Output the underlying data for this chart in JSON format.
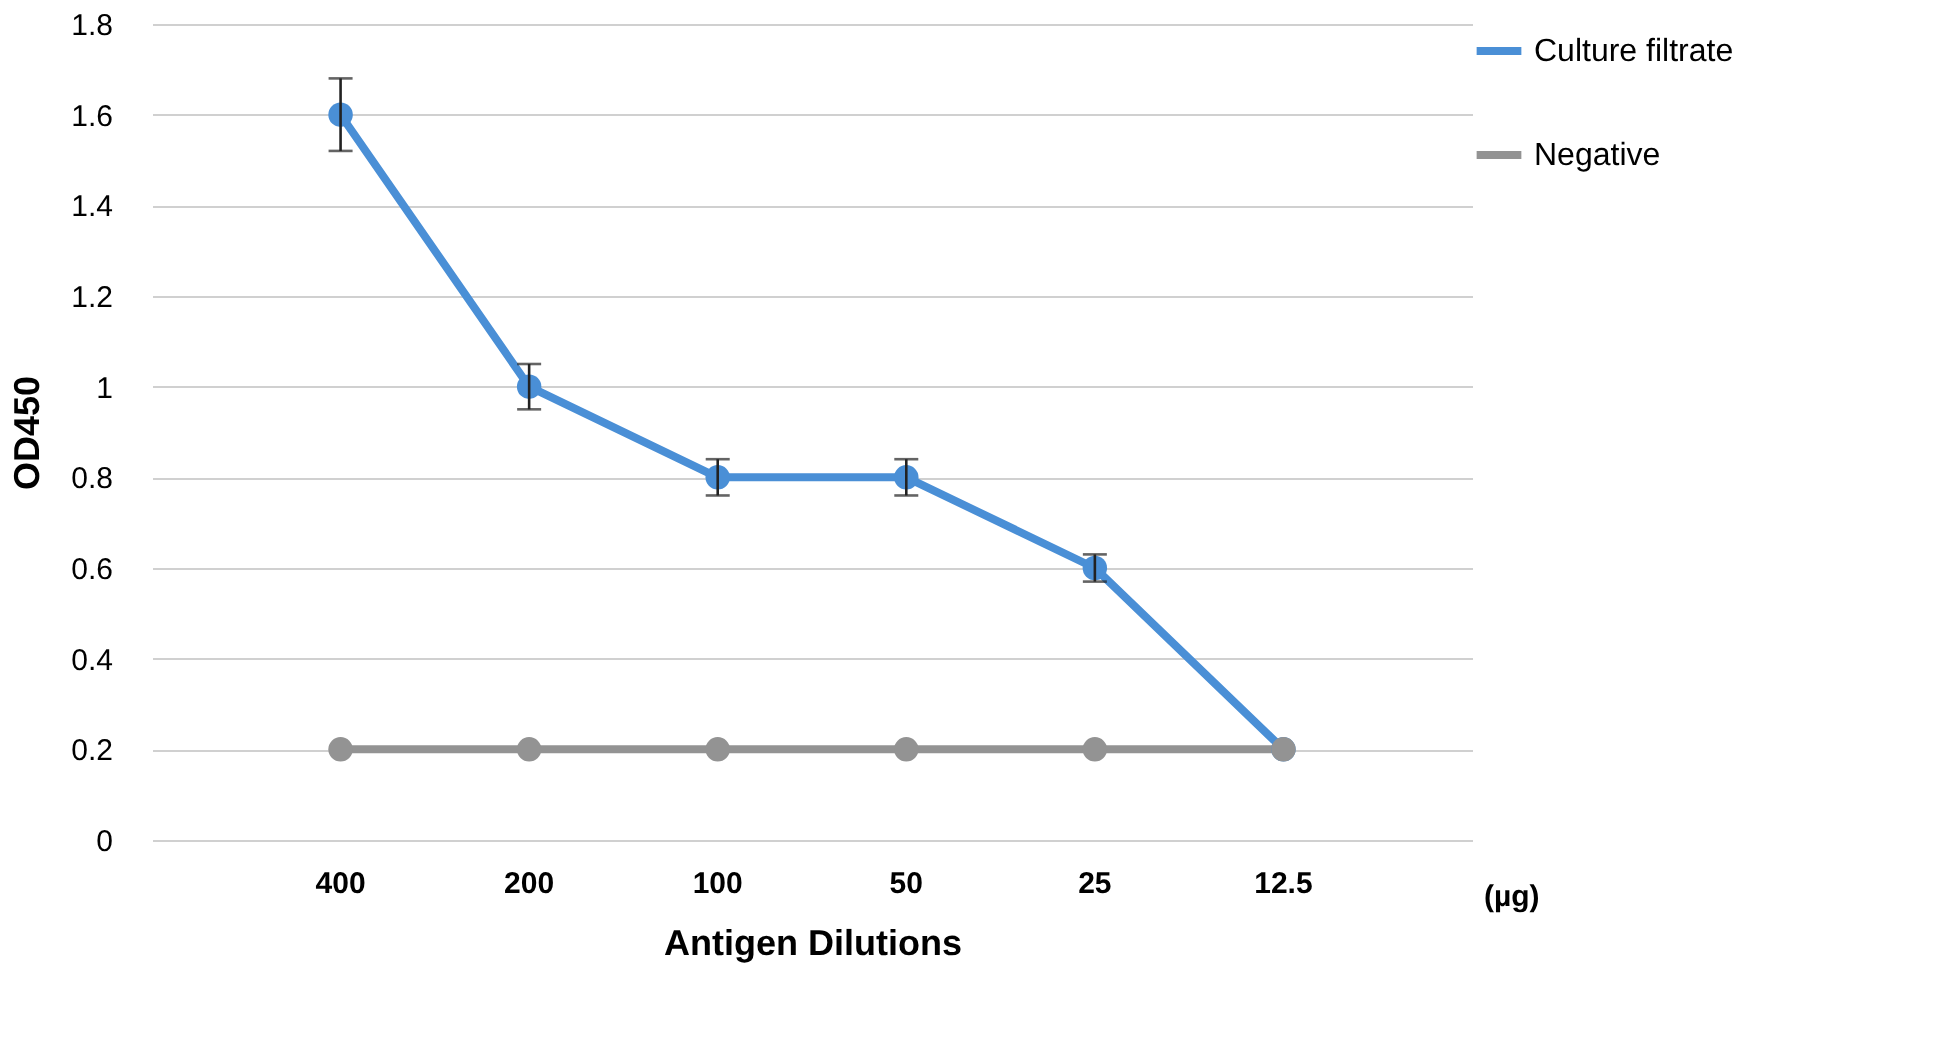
{
  "chart_data": {
    "type": "line",
    "xlabel": "Antigen Dilutions",
    "ylabel": "OD450",
    "categories": [
      "400",
      "200",
      "100",
      "50",
      "25",
      "12.5"
    ],
    "series": [
      {
        "name": "Culture filtrate",
        "color": "#4a8fd6",
        "values": [
          1.6,
          1.0,
          0.8,
          0.8,
          0.6,
          0.2
        ],
        "errors": [
          0.08,
          0.05,
          0.04,
          0.04,
          0.03,
          null
        ]
      },
      {
        "name": "Negative",
        "color": "#939393",
        "values": [
          0.2,
          0.2,
          0.2,
          0.2,
          0.2,
          0.2
        ]
      }
    ],
    "ylim": [
      0,
      1.8
    ],
    "yticks": [
      0,
      0.2,
      0.4,
      0.6,
      0.8,
      1,
      1.2,
      1.4,
      1.6,
      1.8
    ],
    "annotations": [
      "(µg)"
    ],
    "grid": "y",
    "legend": "right",
    "marker": "circle",
    "line_style": "solid"
  }
}
